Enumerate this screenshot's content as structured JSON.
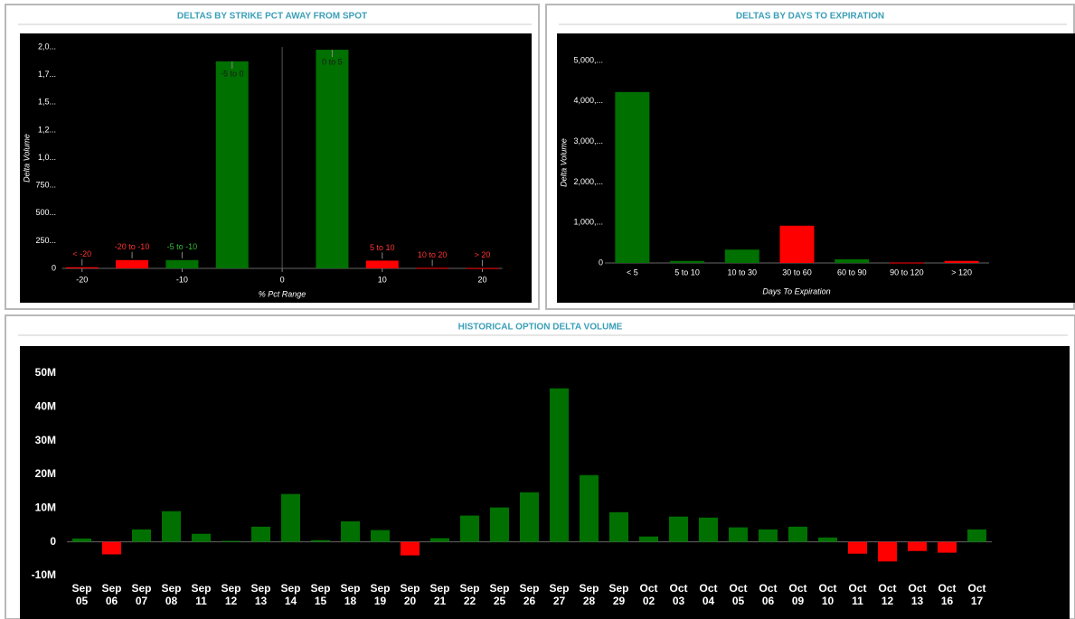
{
  "chart_data": [
    {
      "type": "bar",
      "title": "DELTAS BY STRIKE PCT AWAY FROM SPOT",
      "x_label": "% Pct Range",
      "y_label": "Delta Volume",
      "categories": [
        "< -20",
        "-20 to -10",
        "-5 to -10",
        "-5 to 0",
        "0 to 5",
        "5 to 10",
        "10 to 20",
        "> 20"
      ],
      "x": [
        -20,
        -15,
        -10,
        -5,
        5,
        10,
        15,
        20
      ],
      "values": [
        10,
        75,
        75,
        1870,
        1975,
        70,
        5,
        3
      ],
      "colors": [
        "#ff0000",
        "#ff0000",
        "#007000",
        "#007000",
        "#007000",
        "#ff0000",
        "#ff0000",
        "#ff0000"
      ],
      "label_colors": [
        "#ff3333",
        "#ff3333",
        "#33bb33",
        "#1a1a1a",
        "#1a1a1a",
        "#ff3333",
        "#ff3333",
        "#ff3333"
      ],
      "xlim": [
        -22,
        22
      ],
      "xticks": [
        -20,
        -10,
        0,
        10,
        20
      ],
      "ylim": [
        0,
        2000
      ],
      "yticks": [
        0,
        {
          "value": 250,
          "label": "250..."
        },
        {
          "value": 500,
          "label": "500..."
        },
        {
          "value": 750,
          "label": "750..."
        },
        {
          "value": 1000,
          "label": "1,0..."
        },
        {
          "value": 1250,
          "label": "1,2..."
        },
        {
          "value": 1500,
          "label": "1,5..."
        },
        {
          "value": 1750,
          "label": "1,7..."
        },
        {
          "value": 2000,
          "label": "2,0..."
        }
      ]
    },
    {
      "type": "bar",
      "title": "DELTAS BY DAYS TO EXPIRATION",
      "x_label": "Days To Expiration",
      "y_label": "Delta Volume",
      "categories": [
        "< 5",
        "5 to 10",
        "10 to 30",
        "30 to 60",
        "60 to 90",
        "90 to 120",
        "> 120"
      ],
      "values": [
        4222,
        50,
        330,
        920,
        90,
        10,
        50
      ],
      "colors": [
        "#007000",
        "#007000",
        "#007000",
        "#ff0000",
        "#007000",
        "#ff0000",
        "#ff0000"
      ],
      "ylim": [
        0,
        5000
      ],
      "yticks": [
        0,
        {
          "value": 1000,
          "label": "1,000,..."
        },
        {
          "value": 2000,
          "label": "2,000,..."
        },
        {
          "value": 3000,
          "label": "3,000,..."
        },
        {
          "value": 4000,
          "label": "4,000,..."
        },
        {
          "value": 5000,
          "label": "5,000,..."
        }
      ]
    },
    {
      "type": "bar",
      "title": "HISTORICAL OPTION DELTA VOLUME",
      "categories": [
        "Sep 05",
        "Sep 06",
        "Sep 07",
        "Sep 08",
        "Sep 11",
        "Sep 12",
        "Sep 13",
        "Sep 14",
        "Sep 15",
        "Sep 18",
        "Sep 19",
        "Sep 20",
        "Sep 21",
        "Sep 22",
        "Sep 25",
        "Sep 26",
        "Sep 27",
        "Sep 28",
        "Sep 29",
        "Oct 02",
        "Oct 03",
        "Oct 04",
        "Oct 05",
        "Oct 06",
        "Oct 09",
        "Oct 10",
        "Oct 11",
        "Oct 12",
        "Oct 13",
        "Oct 16",
        "Oct 17"
      ],
      "values": [
        1000000,
        -3700000,
        3700000,
        9100000,
        2400000,
        300000,
        4500000,
        14200000,
        500000,
        6100000,
        3500000,
        -4000000,
        1100000,
        7800000,
        10200000,
        14700000,
        45500000,
        19800000,
        8800000,
        1600000,
        7500000,
        7200000,
        4300000,
        3700000,
        4500000,
        1300000,
        -3500000,
        -5800000,
        -2700000,
        -3200000,
        3700000
      ],
      "color": "#007000",
      "negative_color": "#ff0000",
      "ylim": [
        -10000000,
        50000000
      ],
      "yticks": [
        {
          "value": -10000000,
          "label": "-10M"
        },
        0,
        {
          "value": 10000000,
          "label": "10M"
        },
        {
          "value": 20000000,
          "label": "20M"
        },
        {
          "value": 30000000,
          "label": "30M"
        },
        {
          "value": 40000000,
          "label": "40M"
        },
        {
          "value": 50000000,
          "label": "50M"
        }
      ]
    }
  ]
}
